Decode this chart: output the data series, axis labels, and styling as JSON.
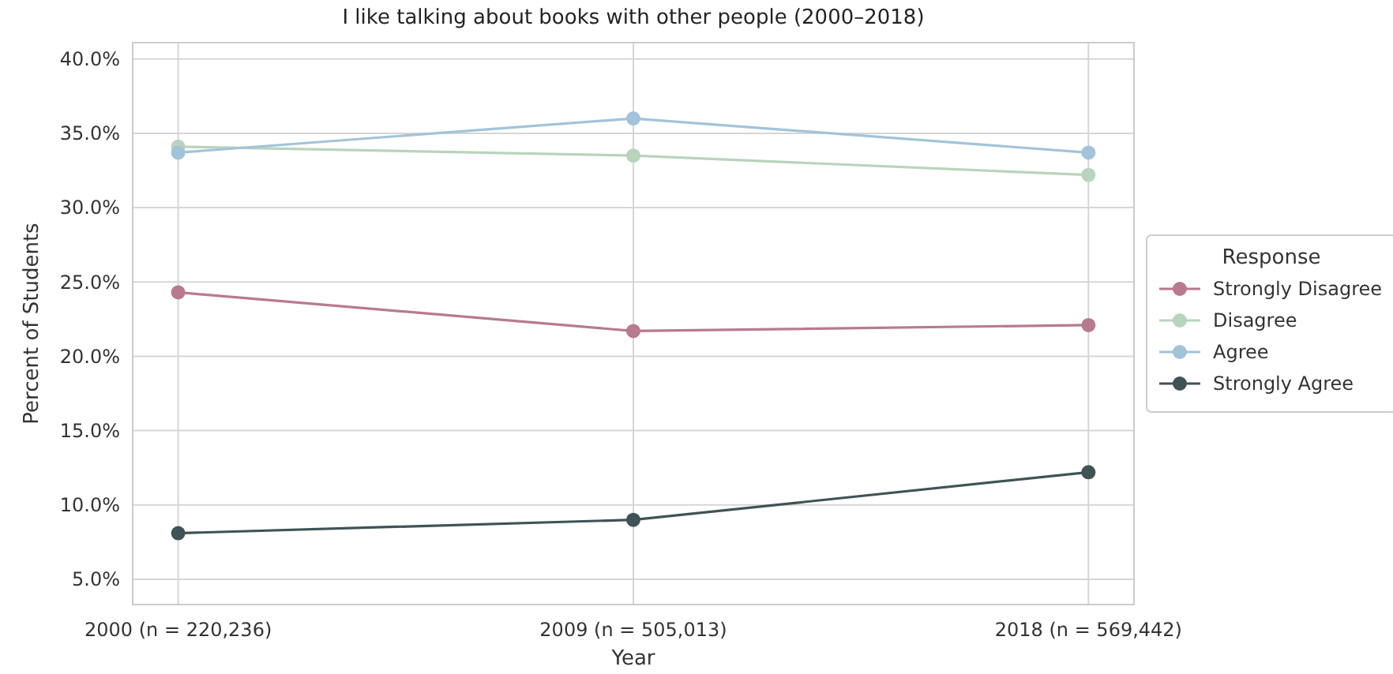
{
  "chart_data": {
    "type": "line",
    "title": "I like talking about books with other people (2000–2018)",
    "xlabel": "Year",
    "ylabel": "Percent of Students",
    "legend_title": "Response",
    "categories": [
      "2000 (n = 220,236)",
      "2009 (n = 505,013)",
      "2018 (n = 569,442)"
    ],
    "series": [
      {
        "name": "Strongly Disagree",
        "color": "#b87a8e",
        "values": [
          24.3,
          21.7,
          22.1
        ]
      },
      {
        "name": "Disagree",
        "color": "#b8d4bd",
        "values": [
          34.1,
          33.5,
          32.2
        ]
      },
      {
        "name": "Agree",
        "color": "#a3c3da",
        "values": [
          33.7,
          36.0,
          33.7
        ]
      },
      {
        "name": "Strongly Agree",
        "color": "#3f5357",
        "values": [
          8.1,
          9.0,
          12.2
        ]
      }
    ],
    "ylim": [
      3.3,
      41.1
    ],
    "yticks": [
      {
        "value": 5,
        "label": "5.0%"
      },
      {
        "value": 10,
        "label": "10.0%"
      },
      {
        "value": 15,
        "label": "15.0%"
      },
      {
        "value": 20,
        "label": "20.0%"
      },
      {
        "value": 25,
        "label": "25.0%"
      },
      {
        "value": 30,
        "label": "30.0%"
      },
      {
        "value": 35,
        "label": "35.0%"
      },
      {
        "value": 40,
        "label": "40.0%"
      }
    ],
    "grid": true,
    "legend": "right",
    "marker": "circle",
    "line_style": "solid"
  }
}
